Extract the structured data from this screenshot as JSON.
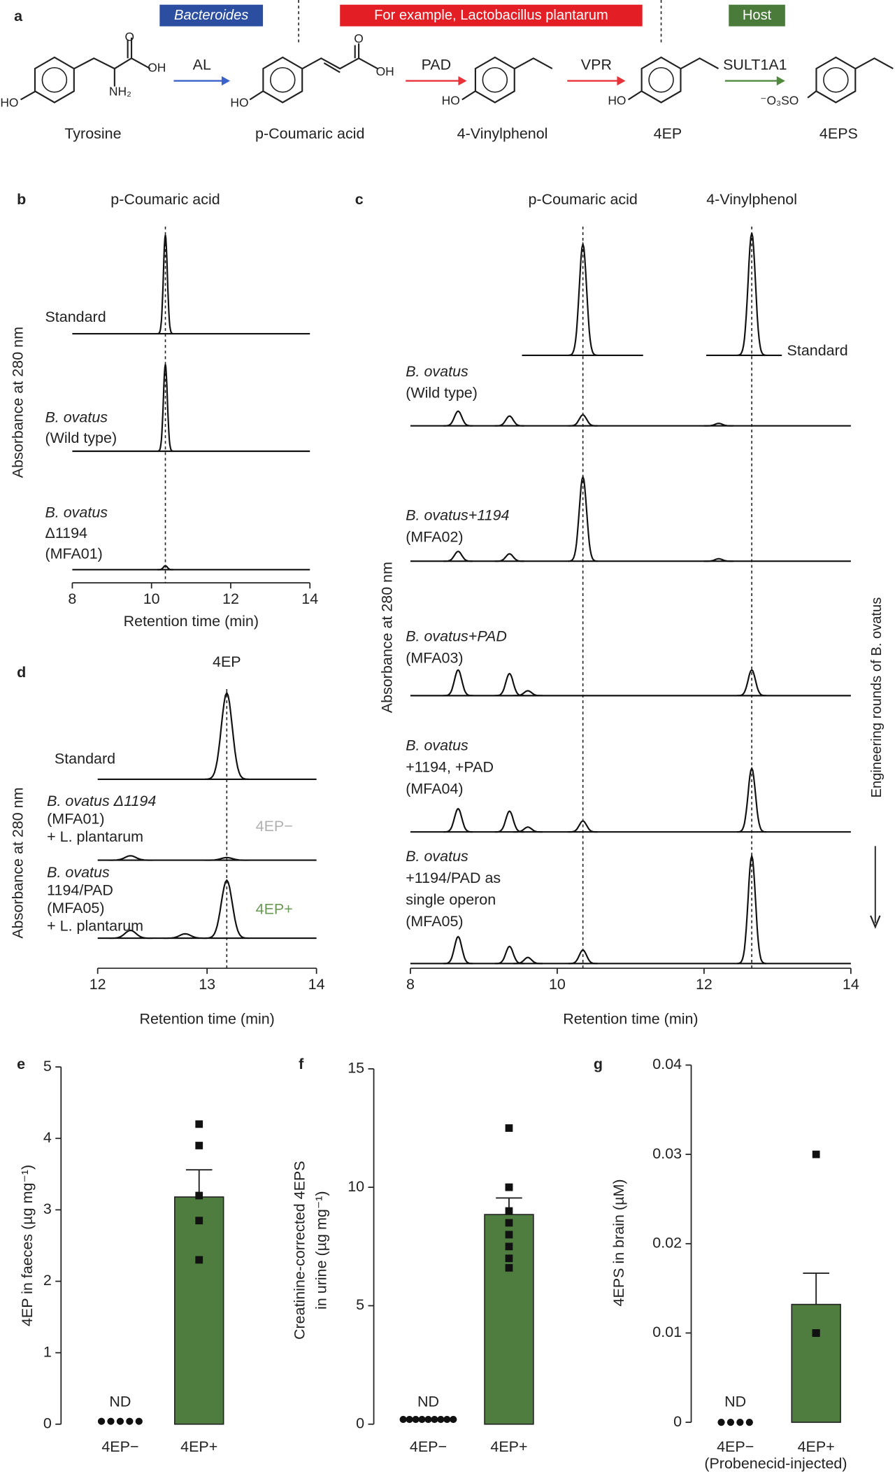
{
  "panel_a": {
    "panel": "a",
    "groups": [
      {
        "text": "Bacteroides",
        "color": "#2b4ea0"
      },
      {
        "text": "For example, Lactobacillus plantarum",
        "color": "#e31e24"
      },
      {
        "text": "Host",
        "color": "#4a7b3b"
      }
    ],
    "molecules": [
      {
        "name": "Tyrosine",
        "atoms": [
          "HO",
          "NH₂",
          "OH",
          "O"
        ]
      },
      {
        "name": "p-Coumaric acid",
        "atoms": [
          "HO",
          "O",
          "OH"
        ]
      },
      {
        "name": "4-Vinylphenol",
        "atoms": [
          "HO"
        ]
      },
      {
        "name": "4EP",
        "atoms": [
          "HO"
        ]
      },
      {
        "name": "4EPS",
        "atoms": [
          "⁻O₃SO"
        ]
      }
    ],
    "enzymes": [
      {
        "name": "AL",
        "color": "#3a62c8"
      },
      {
        "name": "PAD",
        "color": "#e8323a"
      },
      {
        "name": "VPR",
        "color": "#e8323a"
      },
      {
        "name": "SULT1A1",
        "color": "#4f8a3e"
      }
    ]
  },
  "chart_data": [
    {
      "type": "chromatogram",
      "panel": "b",
      "xlabel": "Retention time (min)",
      "ylabel": "Absorbance at 280 nm",
      "xlim": [
        8,
        14
      ],
      "xticks": [
        8,
        10,
        12,
        14
      ],
      "markers": [
        {
          "label": "p-Coumaric acid",
          "x": 10.35
        }
      ],
      "traces": [
        {
          "name_lines": [
            "Standard"
          ],
          "x": [
            10.35
          ],
          "values": [
            1.0
          ]
        },
        {
          "name_lines": [
            "B. ovatus",
            "(Wild type)"
          ],
          "x": [
            10.35
          ],
          "values": [
            0.88
          ]
        },
        {
          "name_lines": [
            "B. ovatus",
            "Δ1194",
            "(MFA01)"
          ],
          "x": [
            10.35
          ],
          "values": [
            0.04
          ]
        }
      ]
    },
    {
      "type": "chromatogram",
      "panel": "c",
      "xlabel": "Retention time (min)",
      "ylabel": "Absorbance at 280 nm",
      "side_label": "Engineering rounds of B. ovatus",
      "xlim": [
        8,
        14
      ],
      "xticks": [
        8,
        10,
        12,
        14
      ],
      "markers": [
        {
          "label": "p-Coumaric acid",
          "x": 10.35
        },
        {
          "label": "4-Vinylphenol",
          "x": 12.65
        }
      ],
      "traces": [
        {
          "name_lines": [
            "Standard"
          ],
          "segments": [
            [
              9.52,
              11.17
            ],
            [
              12.03,
              13.06
            ]
          ],
          "x": [
            10.35,
            12.65
          ],
          "values": [
            0.91,
            1.0
          ]
        },
        {
          "name_lines": [
            "B. ovatus",
            "(Wild type)"
          ],
          "x": [
            8.65,
            9.35,
            10.35,
            12.2
          ],
          "values": [
            0.12,
            0.08,
            0.09,
            0.02
          ]
        },
        {
          "name_lines": [
            "B. ovatus+1194",
            "(MFA02)"
          ],
          "x": [
            8.65,
            9.35,
            10.35,
            12.2
          ],
          "values": [
            0.08,
            0.06,
            0.69,
            0.02
          ]
        },
        {
          "name_lines": [
            "B. ovatus+PAD",
            "(MFA03)"
          ],
          "x": [
            8.65,
            9.35,
            9.6,
            12.65
          ],
          "values": [
            0.21,
            0.18,
            0.04,
            0.21
          ]
        },
        {
          "name_lines": [
            "B. ovatus",
            "+1194, +PAD",
            "(MFA04)"
          ],
          "x": [
            8.65,
            9.35,
            9.6,
            10.35,
            12.65
          ],
          "values": [
            0.19,
            0.17,
            0.04,
            0.09,
            0.52
          ]
        },
        {
          "name_lines": [
            "B. ovatus",
            "+1194/PAD as",
            "single operon",
            "(MFA05)"
          ],
          "x": [
            8.65,
            9.35,
            9.6,
            10.35,
            12.65
          ],
          "values": [
            0.22,
            0.14,
            0.05,
            0.11,
            0.88
          ]
        }
      ]
    },
    {
      "type": "chromatogram",
      "panel": "d",
      "xlabel": "Retention time (min)",
      "ylabel": "Absorbance at 280 nm",
      "xlim": [
        12,
        14
      ],
      "xticks": [
        12,
        13,
        14
      ],
      "markers": [
        {
          "label": "4EP",
          "x": 13.18
        }
      ],
      "traces": [
        {
          "name_lines": [
            "Standard"
          ],
          "x": [
            13.18
          ],
          "values": [
            1.0
          ]
        },
        {
          "name_lines": [
            "B. ovatus Δ1194",
            "(MFA01)",
            "+ L. plantarum"
          ],
          "tag": "4EP−",
          "tag_color": "#b0b0b0",
          "x": [
            12.3,
            13.18
          ],
          "values": [
            0.05,
            0.03
          ]
        },
        {
          "name_lines": [
            "B. ovatus",
            "1194/PAD",
            "(MFA05)",
            "+ L. plantarum"
          ],
          "tag": "4EP+",
          "tag_color": "#6a9a55",
          "x": [
            12.3,
            12.8,
            13.18
          ],
          "values": [
            0.09,
            0.05,
            0.67
          ]
        }
      ]
    },
    {
      "type": "bar",
      "panel": "e",
      "ylabel": [
        "4EP in faeces (µg mg⁻¹)"
      ],
      "categories": [
        "4EP−",
        "4EP+"
      ],
      "values": [
        null,
        3.18
      ],
      "errors": [
        null,
        0.38
      ],
      "color": "#4e7d3f",
      "annotations": [
        "ND",
        null
      ],
      "points": [
        [
          0.04,
          0.04,
          0.04,
          0.04,
          0.04
        ],
        [
          4.2,
          3.9,
          3.2,
          2.85,
          2.3
        ]
      ],
      "ylim": [
        0,
        5
      ],
      "yticks": [
        0,
        1,
        2,
        3,
        4,
        5
      ]
    },
    {
      "type": "bar",
      "panel": "f",
      "ylabel": [
        "Creatinine-corrected 4EPS",
        "in urine (µg mg⁻¹)"
      ],
      "categories": [
        "4EP−",
        "4EP+"
      ],
      "values": [
        null,
        8.85
      ],
      "errors": [
        null,
        0.7
      ],
      "color": "#4e7d3f",
      "annotations": [
        "ND",
        null
      ],
      "points": [
        [
          0.2,
          0.2,
          0.2,
          0.2,
          0.2,
          0.2,
          0.2,
          0.2,
          0.2
        ],
        [
          12.5,
          10.0,
          10.0,
          9.0,
          8.5,
          8.0,
          7.5,
          7.0,
          6.6
        ]
      ],
      "ylim": [
        0,
        15
      ],
      "yticks": [
        0,
        5,
        10,
        15
      ]
    },
    {
      "type": "bar",
      "panel": "g",
      "ylabel": [
        "4EPS in brain (µM)"
      ],
      "categories": [
        "4EP−",
        "4EP+"
      ],
      "x_note": "(Probenecid-injected)",
      "values": [
        null,
        0.0132
      ],
      "errors": [
        null,
        0.0035
      ],
      "color": "#4e7d3f",
      "annotations": [
        "ND",
        null
      ],
      "points": [
        [
          0,
          0,
          0,
          0
        ],
        [
          0.03,
          0.01,
          0.01,
          0.01,
          0.01,
          0.01
        ]
      ],
      "ylim": [
        0,
        0.04
      ],
      "yticks": [
        0,
        0.01,
        0.02,
        0.03,
        0.04
      ]
    }
  ]
}
